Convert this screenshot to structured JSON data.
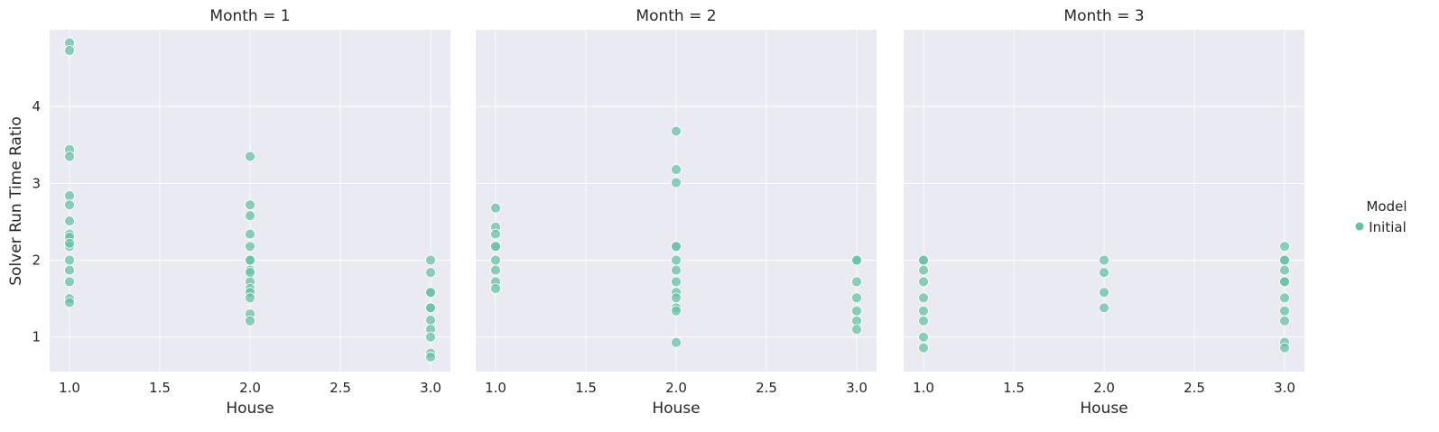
{
  "colors": {
    "marker": "#66c2a5",
    "panel_background": "#eaeaf2",
    "grid": "#ffffff",
    "text": "#262626"
  },
  "legend": {
    "title": "Model",
    "entries": [
      "Initial"
    ]
  },
  "chart_data": [
    {
      "type": "scatter",
      "title": "Month = 1",
      "xlabel": "House",
      "ylabel": "Solver Run Time Ratio",
      "xlim": [
        0.89,
        3.11
      ],
      "ylim": [
        0.55,
        5.0
      ],
      "xticks": [
        "1.0",
        "1.5",
        "2.0",
        "2.5",
        "3.0"
      ],
      "yticks": [
        "1",
        "2",
        "3",
        "4"
      ],
      "grid": true,
      "series": [
        {
          "name": "Initial",
          "x": [
            1,
            1,
            1,
            1,
            1,
            1,
            1,
            1,
            1,
            1,
            1,
            1,
            1,
            1,
            1,
            1,
            2,
            2,
            2,
            2,
            2,
            2,
            2,
            2,
            2,
            2,
            2,
            2,
            2,
            2,
            2,
            3,
            3,
            3,
            3,
            3,
            3,
            3,
            3,
            3,
            3,
            3
          ],
          "y": [
            4.83,
            4.73,
            3.44,
            3.35,
            2.84,
            2.72,
            2.51,
            2.34,
            2.3,
            2.18,
            2.0,
            1.87,
            1.72,
            1.5,
            1.45,
            2.22,
            3.35,
            2.72,
            2.58,
            2.34,
            2.18,
            2.0,
            1.87,
            1.72,
            1.63,
            1.58,
            1.51,
            1.3,
            1.21,
            2.0,
            1.84,
            2.0,
            1.84,
            1.58,
            1.38,
            1.22,
            1.1,
            1.0,
            0.79,
            0.74,
            1.58,
            1.38
          ]
        }
      ]
    },
    {
      "type": "scatter",
      "title": "Month = 2",
      "xlabel": "House",
      "ylabel": "",
      "xlim": [
        0.89,
        3.11
      ],
      "ylim": [
        0.55,
        5.0
      ],
      "xticks": [
        "1.0",
        "1.5",
        "2.0",
        "2.5",
        "3.0"
      ],
      "yticks": [],
      "grid": true,
      "series": [
        {
          "name": "Initial",
          "x": [
            1,
            1,
            1,
            1,
            1,
            1,
            1,
            1,
            1,
            2,
            2,
            2,
            2,
            2,
            2,
            2,
            2,
            2,
            2,
            2,
            2,
            2,
            3,
            3,
            3,
            3,
            3,
            3,
            3
          ],
          "y": [
            2.68,
            2.43,
            2.34,
            2.18,
            2.0,
            1.87,
            1.72,
            1.63,
            2.18,
            3.68,
            3.18,
            3.01,
            2.18,
            2.0,
            1.87,
            1.72,
            1.58,
            1.51,
            1.38,
            1.34,
            0.93,
            2.18,
            2.0,
            1.72,
            1.51,
            1.34,
            1.21,
            1.1,
            2.0
          ]
        }
      ]
    },
    {
      "type": "scatter",
      "title": "Month = 3",
      "xlabel": "House",
      "ylabel": "",
      "xlim": [
        0.89,
        3.11
      ],
      "ylim": [
        0.55,
        5.0
      ],
      "xticks": [
        "1.0",
        "1.5",
        "2.0",
        "2.5",
        "3.0"
      ],
      "yticks": [],
      "grid": true,
      "series": [
        {
          "name": "Initial",
          "x": [
            1,
            1,
            1,
            1,
            1,
            1,
            1,
            1,
            1,
            2,
            2,
            2,
            2,
            3,
            3,
            3,
            3,
            3,
            3,
            3,
            3,
            3,
            3,
            3
          ],
          "y": [
            2.0,
            1.87,
            1.72,
            1.51,
            1.34,
            1.21,
            1.0,
            0.86,
            2.0,
            2.0,
            1.84,
            1.58,
            1.38,
            2.18,
            2.0,
            1.87,
            1.72,
            1.51,
            1.34,
            1.21,
            0.93,
            0.86,
            1.72,
            2.0
          ]
        }
      ]
    }
  ]
}
